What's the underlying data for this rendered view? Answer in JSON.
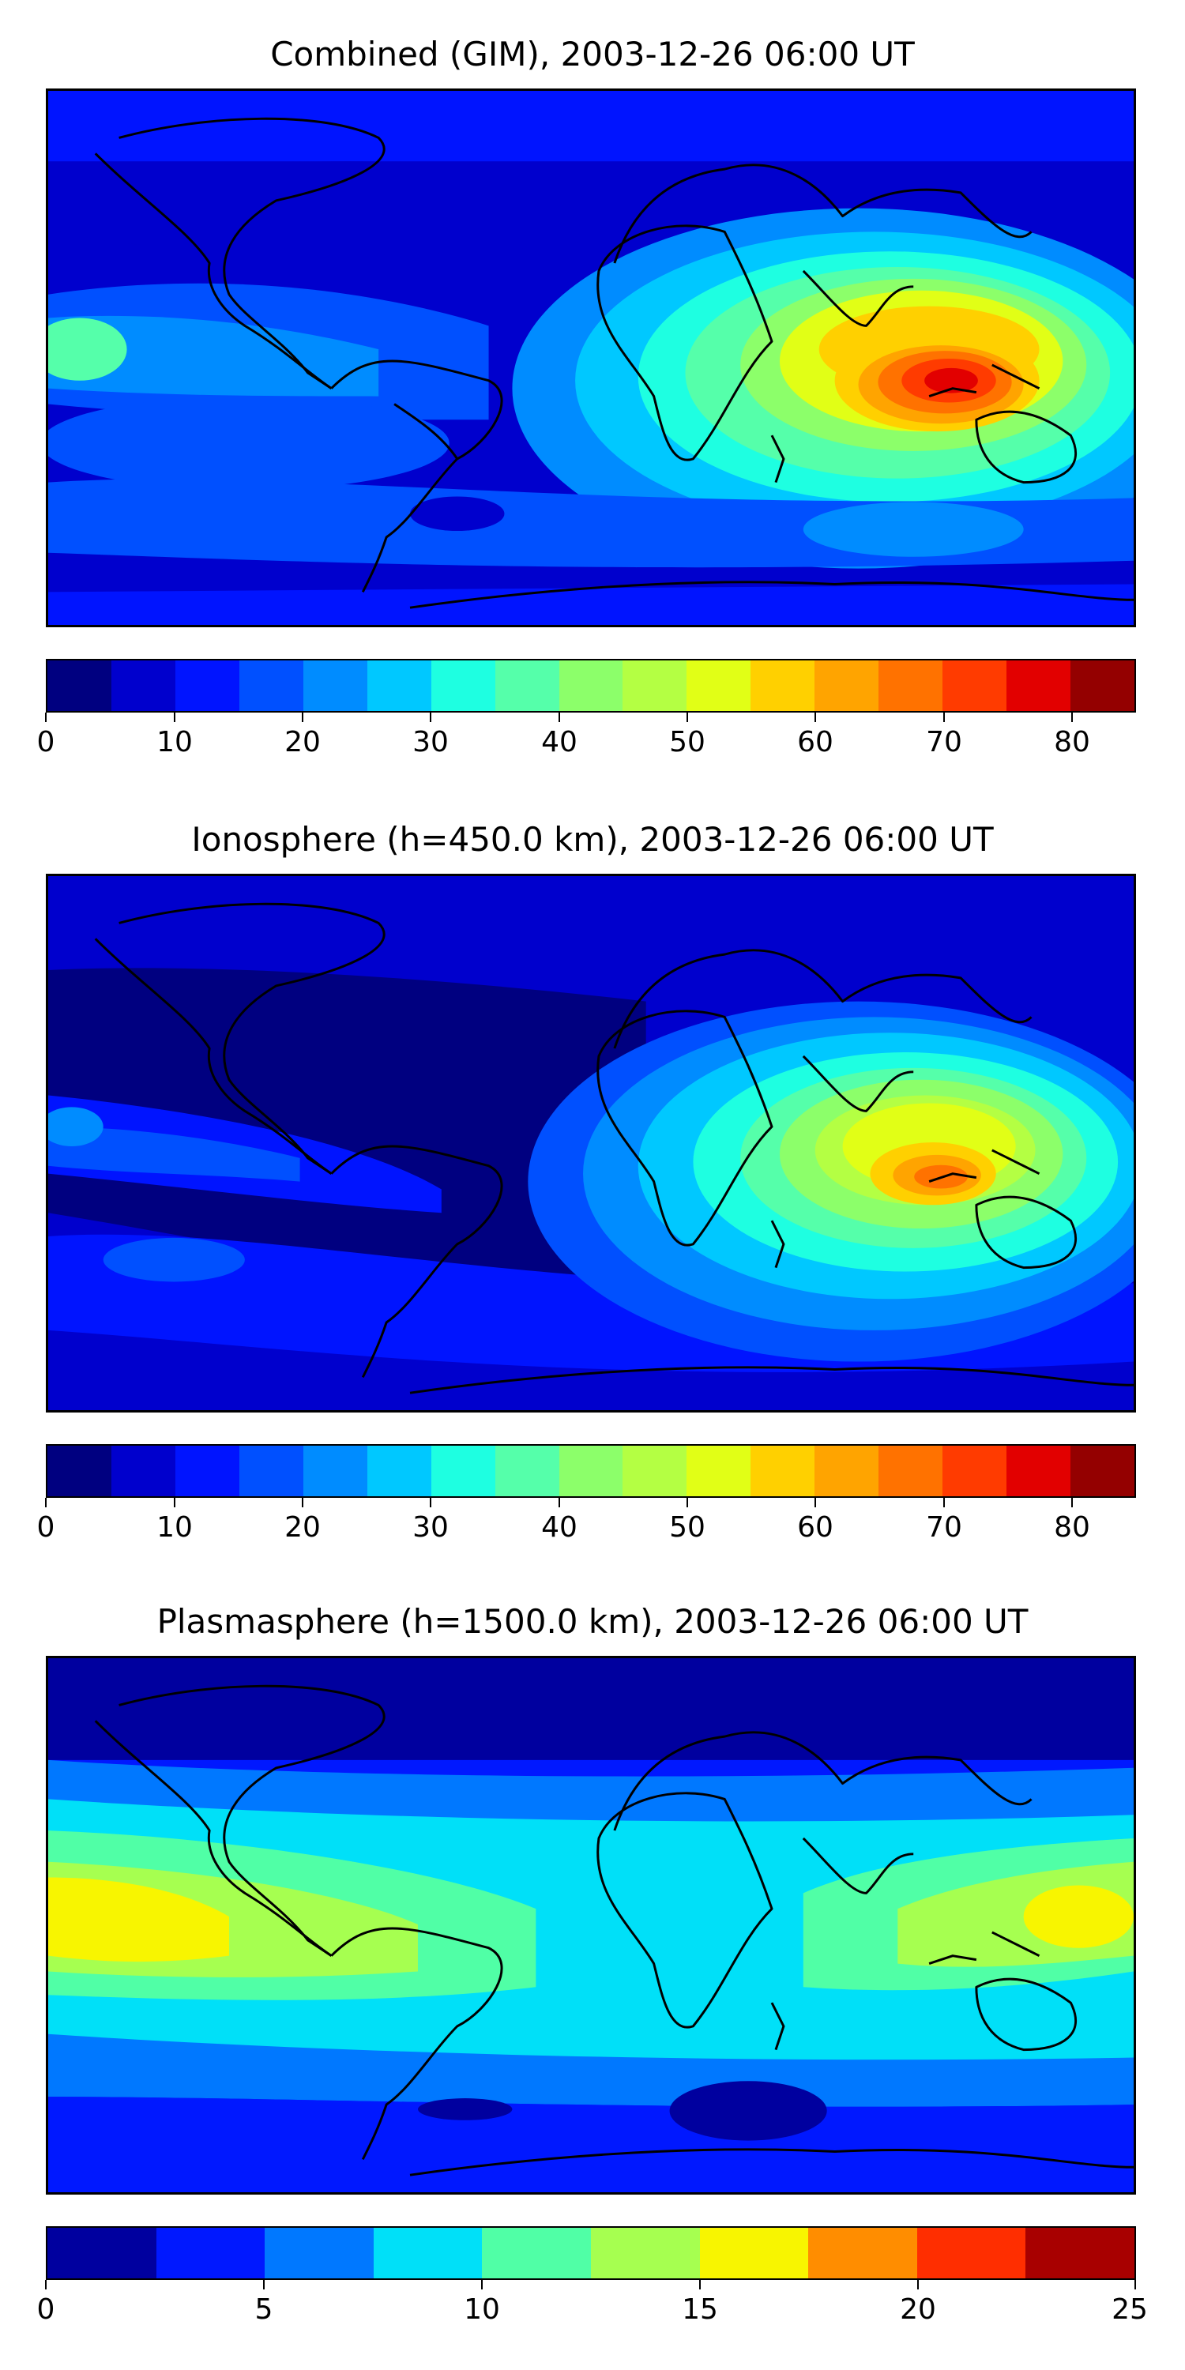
{
  "panels": [
    {
      "title": "Combined (GIM), 2003-12-26 06:00 UT",
      "colorbar_ticks": [
        "0",
        "10",
        "20",
        "30",
        "40",
        "50",
        "60",
        "70",
        "80"
      ],
      "colorbar_range": [
        0,
        85
      ],
      "colorbar_step": 5
    },
    {
      "title": "Ionosphere  (h=450.0 km), 2003-12-26 06:00 UT",
      "colorbar_ticks": [
        "0",
        "10",
        "20",
        "30",
        "40",
        "50",
        "60",
        "70",
        "80"
      ],
      "colorbar_range": [
        0,
        85
      ],
      "colorbar_step": 5
    },
    {
      "title": "Plasmasphere (h=1500.0 km), 2003-12-26 06:00 UT",
      "colorbar_ticks": [
        "0",
        "5",
        "10",
        "15",
        "20",
        "25"
      ],
      "colorbar_range": [
        0,
        25
      ],
      "colorbar_step": 2.5
    }
  ],
  "colormap": {
    "name": "jet",
    "levels17": [
      "#000080",
      "#0000cd",
      "#0014ff",
      "#0050ff",
      "#008cff",
      "#00c8ff",
      "#1effe1",
      "#55ffaa",
      "#8cff6a",
      "#b4ff43",
      "#e1ff16",
      "#ffd000",
      "#ffa400",
      "#ff7200",
      "#ff3b00",
      "#e20000",
      "#940000"
    ],
    "levels10": [
      "#00009f",
      "#0018ff",
      "#0078ff",
      "#00e0f8",
      "#50ffa6",
      "#a6ff50",
      "#f8f500",
      "#ff8d00",
      "#ff2e00",
      "#a80000"
    ]
  },
  "map_colors": {
    "coastline": "#000000"
  }
}
